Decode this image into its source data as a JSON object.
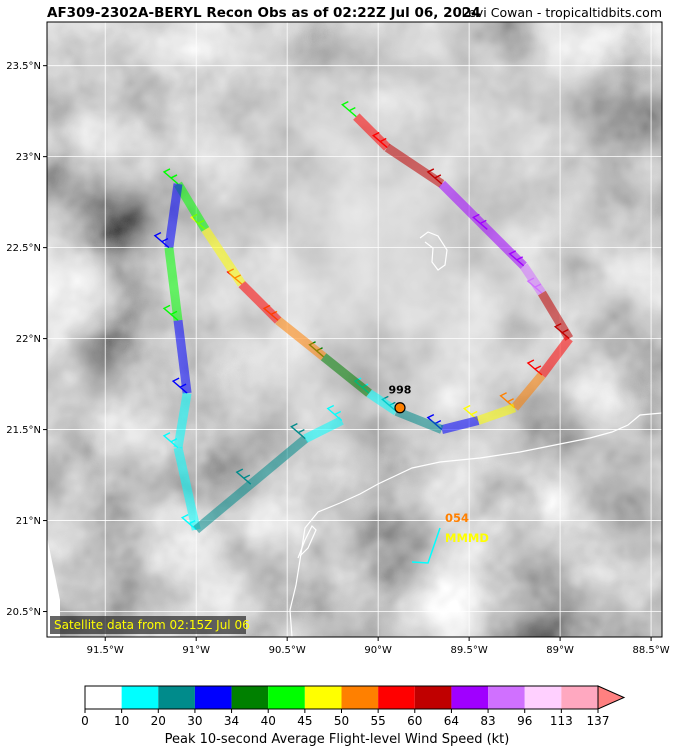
{
  "chart_data": {
    "type": "map",
    "title": "AF309-2302A-BERYL Recon Obs as of 02:22Z Jul 06, 2024",
    "credit": "Levi Cowan - tropicaltidbits.com",
    "xlim": [
      -91.82,
      -88.44
    ],
    "ylim": [
      20.36,
      23.74
    ],
    "xticks": [
      {
        "value": -91.5,
        "label": "91.5°W"
      },
      {
        "value": -91,
        "label": "91°W"
      },
      {
        "value": -90.5,
        "label": "90.5°W"
      },
      {
        "value": -90,
        "label": "90°W"
      },
      {
        "value": -89.5,
        "label": "89.5°W"
      },
      {
        "value": -89,
        "label": "89°W"
      },
      {
        "value": -88.5,
        "label": "88.5°W"
      }
    ],
    "yticks": [
      {
        "value": 20.5,
        "label": "20.5°N"
      },
      {
        "value": 21,
        "label": "21°N"
      },
      {
        "value": 21.5,
        "label": "21.5°N"
      },
      {
        "value": 22,
        "label": "22°N"
      },
      {
        "value": 22.5,
        "label": "22.5°N"
      },
      {
        "value": 23,
        "label": "23°N"
      },
      {
        "value": 23.5,
        "label": "23.5°N"
      }
    ],
    "grid": true,
    "satellite_note": "Satellite data from 02:15Z Jul 06",
    "center": {
      "label": "998",
      "lon": -89.88,
      "lat": 21.62
    },
    "annotations": [
      "054",
      "MMMD"
    ],
    "track": {
      "lon": [
        -90.12,
        -89.95,
        -89.65,
        -89.4,
        -89.2,
        -89.1,
        -88.95,
        -89.1,
        -89.25,
        -89.45,
        -89.65,
        -89.9,
        -90.05,
        -90.3,
        -90.55,
        -90.75,
        -90.95,
        -91.1,
        -91.15,
        -91.1,
        -91.05,
        -91.1,
        -91.0,
        -90.7,
        -90.4,
        -90.2
      ],
      "lat": [
        23.22,
        23.05,
        22.85,
        22.6,
        22.4,
        22.25,
        22.0,
        21.8,
        21.62,
        21.55,
        21.5,
        21.6,
        21.7,
        21.9,
        22.1,
        22.3,
        22.6,
        22.85,
        22.5,
        22.1,
        21.7,
        21.4,
        20.95,
        21.2,
        21.45,
        21.55
      ],
      "wind": [
        40,
        55,
        60,
        64,
        70,
        90,
        60,
        55,
        50,
        45,
        30,
        20,
        18,
        34,
        50,
        55,
        45,
        40,
        30,
        40,
        30,
        18,
        15,
        25,
        20,
        15
      ]
    },
    "colorbar": {
      "label": "Peak 10-second Average Flight-level Wind Speed (kt)",
      "bounds": [
        0,
        10,
        20,
        30,
        34,
        40,
        45,
        50,
        55,
        60,
        64,
        83,
        96,
        113,
        137
      ],
      "colors": [
        "#ffffff",
        "#00ffff",
        "#008b8b",
        "#0000ff",
        "#008000",
        "#00ff00",
        "#ffff00",
        "#ff8000",
        "#ff0000",
        "#c00000",
        "#a000ff",
        "#d070ff",
        "#ffd0ff",
        "#ffa8c0"
      ]
    }
  }
}
